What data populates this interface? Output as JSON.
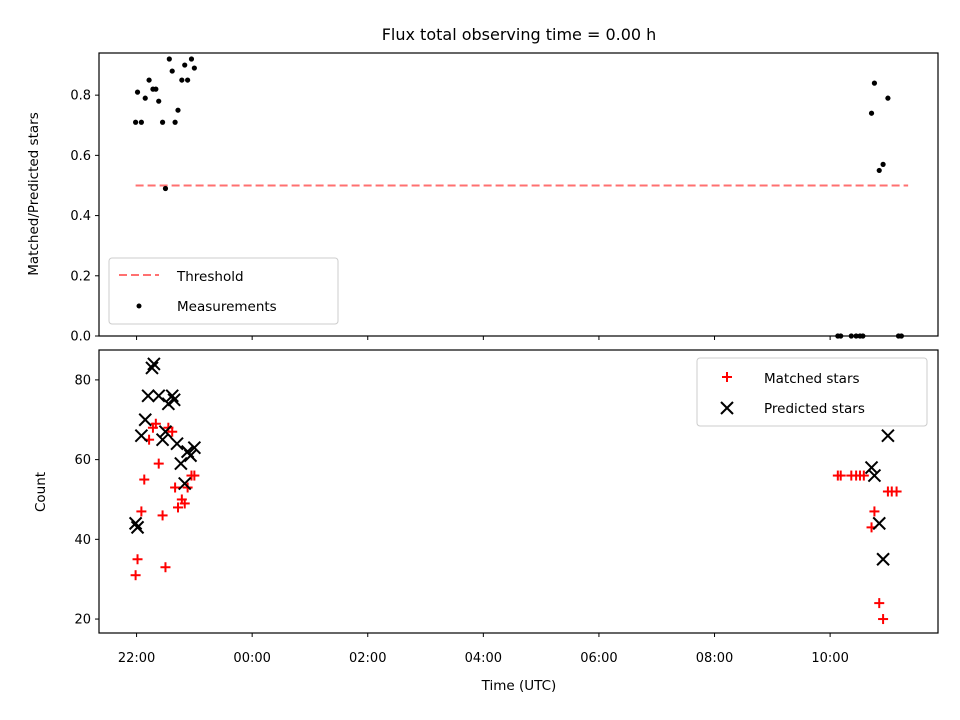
{
  "chart_data": [
    {
      "type": "scatter",
      "title": "Flux total observing time = 0.00 h",
      "xlabel": "",
      "ylabel": "Matched/Predicted stars",
      "ylim": [
        0.0,
        0.94
      ],
      "yticks": [
        0.0,
        0.2,
        0.4,
        0.6,
        0.8
      ],
      "ytick_labels": [
        "0.0",
        "0.2",
        "0.4",
        "0.6",
        "0.8"
      ],
      "legend_location": "lower-left",
      "grid": false,
      "threshold": {
        "name": "Threshold",
        "value": 0.5,
        "x_start": "21:59",
        "x_end": "11:21",
        "color": "#ff7070",
        "style": "dashed"
      },
      "series": [
        {
          "name": "Measurements",
          "marker": "dot",
          "color": "#000000",
          "points": [
            [
              "21:59",
              0.71
            ],
            [
              "22:01",
              0.81
            ],
            [
              "22:05",
              0.71
            ],
            [
              "22:09",
              0.79
            ],
            [
              "22:13",
              0.85
            ],
            [
              "22:17",
              0.82
            ],
            [
              "22:20",
              0.82
            ],
            [
              "22:23",
              0.78
            ],
            [
              "22:27",
              0.71
            ],
            [
              "22:30",
              0.49
            ],
            [
              "22:34",
              0.92
            ],
            [
              "22:37",
              0.88
            ],
            [
              "22:40",
              0.71
            ],
            [
              "22:43",
              0.75
            ],
            [
              "22:47",
              0.85
            ],
            [
              "22:50",
              0.9
            ],
            [
              "22:53",
              0.85
            ],
            [
              "22:57",
              0.92
            ],
            [
              "23:00",
              0.89
            ],
            [
              "10:43",
              0.74
            ],
            [
              "10:46",
              0.84
            ],
            [
              "10:51",
              0.55
            ],
            [
              "10:55",
              0.57
            ],
            [
              "11:00",
              0.79
            ],
            [
              "10:08",
              0.0
            ],
            [
              "10:11",
              0.0
            ],
            [
              "10:22",
              0.0
            ],
            [
              "10:27",
              0.0
            ],
            [
              "10:31",
              0.0
            ],
            [
              "10:34",
              0.0
            ],
            [
              "11:11",
              0.0
            ],
            [
              "11:14",
              0.0
            ]
          ]
        }
      ]
    },
    {
      "type": "scatter",
      "title": "",
      "xlabel": "Time (UTC)",
      "ylabel": "Count",
      "ylim": [
        16.5,
        87.5
      ],
      "yticks": [
        20,
        40,
        60,
        80
      ],
      "ytick_labels": [
        "20",
        "40",
        "60",
        "80"
      ],
      "xlim": [
        "21:21",
        "11:52"
      ],
      "xticks": [
        "22:00",
        "00:00",
        "02:00",
        "04:00",
        "06:00",
        "08:00",
        "10:00"
      ],
      "xtick_labels": [
        "22:00",
        "00:00",
        "02:00",
        "04:00",
        "06:00",
        "08:00",
        "10:00"
      ],
      "legend_location": "top-right",
      "grid": false,
      "series": [
        {
          "name": "Matched stars",
          "marker": "plus",
          "color": "#ff0000",
          "points": [
            [
              "21:59",
              31
            ],
            [
              "22:01",
              35
            ],
            [
              "22:05",
              47
            ],
            [
              "22:08",
              55
            ],
            [
              "22:13",
              65
            ],
            [
              "22:17",
              68
            ],
            [
              "22:20",
              69
            ],
            [
              "22:23",
              59
            ],
            [
              "22:27",
              46
            ],
            [
              "22:30",
              33
            ],
            [
              "22:33",
              68
            ],
            [
              "22:37",
              67
            ],
            [
              "22:40",
              53
            ],
            [
              "22:43",
              48
            ],
            [
              "22:47",
              50
            ],
            [
              "22:50",
              49
            ],
            [
              "22:53",
              53
            ],
            [
              "22:57",
              56
            ],
            [
              "23:00",
              56
            ],
            [
              "10:08",
              56
            ],
            [
              "10:11",
              56
            ],
            [
              "10:22",
              56
            ],
            [
              "10:27",
              56
            ],
            [
              "10:31",
              56
            ],
            [
              "10:35",
              56
            ],
            [
              "10:43",
              43
            ],
            [
              "10:46",
              47
            ],
            [
              "10:51",
              24
            ],
            [
              "10:55",
              20
            ],
            [
              "11:00",
              52
            ],
            [
              "11:04",
              52
            ],
            [
              "11:09",
              52
            ]
          ]
        },
        {
          "name": "Predicted stars",
          "marker": "x",
          "color": "#000000",
          "points": [
            [
              "21:59",
              44
            ],
            [
              "22:01",
              43
            ],
            [
              "22:05",
              66
            ],
            [
              "22:09",
              70
            ],
            [
              "22:12",
              76
            ],
            [
              "22:16",
              83
            ],
            [
              "22:18",
              84
            ],
            [
              "22:23",
              76
            ],
            [
              "22:27",
              65
            ],
            [
              "22:30",
              67
            ],
            [
              "22:33",
              74
            ],
            [
              "22:37",
              76
            ],
            [
              "22:39",
              75
            ],
            [
              "22:42",
              64
            ],
            [
              "22:46",
              59
            ],
            [
              "22:50",
              54
            ],
            [
              "22:53",
              62
            ],
            [
              "22:56",
              61
            ],
            [
              "23:00",
              63
            ],
            [
              "10:43",
              58
            ],
            [
              "10:46",
              56
            ],
            [
              "10:51",
              44
            ],
            [
              "10:55",
              35
            ],
            [
              "11:00",
              66
            ]
          ]
        }
      ]
    }
  ]
}
